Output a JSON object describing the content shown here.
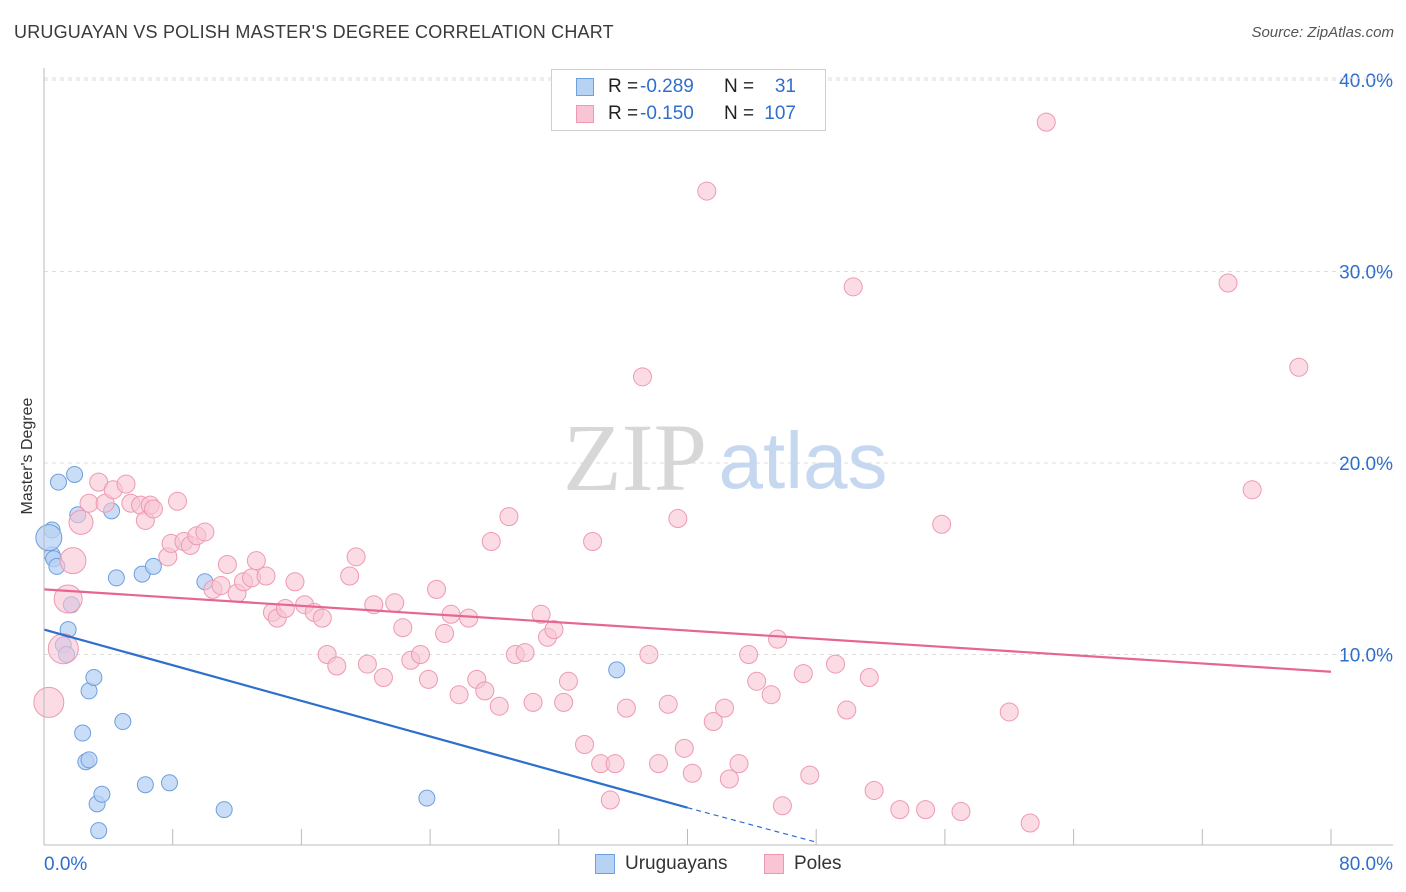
{
  "header": {
    "title": "URUGUAYAN VS POLISH MASTER'S DEGREE CORRELATION CHART",
    "source": "Source: ZipAtlas.com"
  },
  "watermark": {
    "zip": "ZIP",
    "atlas": "atlas"
  },
  "legend": {
    "rows": [
      {
        "r_label": "R =",
        "r_value": "-0.289",
        "n_label": "N =",
        "n_value": "31"
      },
      {
        "r_label": "R =",
        "r_value": "-0.150",
        "n_label": "N =",
        "n_value": "107"
      }
    ]
  },
  "bottom_legend": {
    "uruguayans": "Uruguayans",
    "poles": "Poles"
  },
  "colors": {
    "uruguayans_fill": "#b8d2f4",
    "uruguayans_stroke": "#6e9fde",
    "uruguayans_line": "#2f6fcc",
    "poles_fill": "#f9c5d4",
    "poles_stroke": "#ee99b2",
    "poles_line": "#e56690",
    "tick_text": "#2f6fcc",
    "grid": "#dddddd"
  },
  "chart_data": {
    "type": "scatter",
    "title": "URUGUAYAN VS POLISH MASTER'S DEGREE CORRELATION CHART",
    "xlabel": "",
    "ylabel": "Master's Degree",
    "xlim": [
      0,
      80
    ],
    "ylim": [
      0,
      42
    ],
    "x_tick_labels": [
      "0.0%",
      "80.0%"
    ],
    "y_ticks": [
      10,
      20,
      30,
      40
    ],
    "y_tick_labels": [
      "10.0%",
      "20.0%",
      "30.0%",
      "40.0%"
    ],
    "legend_position": "top-center",
    "series": [
      {
        "name": "Uruguayans",
        "r": -0.289,
        "n": 31,
        "points": [
          [
            0.5,
            16.5
          ],
          [
            0.5,
            15.2
          ],
          [
            0.6,
            15.0
          ],
          [
            0.8,
            14.6
          ],
          [
            0.9,
            19.0
          ],
          [
            1.2,
            10.5
          ],
          [
            1.4,
            10.0
          ],
          [
            1.5,
            11.3
          ],
          [
            1.7,
            12.6
          ],
          [
            1.9,
            19.4
          ],
          [
            2.1,
            17.3
          ],
          [
            2.4,
            5.9
          ],
          [
            2.6,
            4.4
          ],
          [
            2.8,
            4.5
          ],
          [
            2.8,
            8.1
          ],
          [
            3.1,
            8.8
          ],
          [
            3.3,
            2.2
          ],
          [
            3.4,
            0.8
          ],
          [
            3.6,
            2.7
          ],
          [
            4.2,
            17.5
          ],
          [
            4.5,
            14.0
          ],
          [
            4.9,
            6.5
          ],
          [
            6.1,
            14.2
          ],
          [
            6.3,
            3.2
          ],
          [
            6.8,
            14.6
          ],
          [
            7.8,
            3.3
          ],
          [
            10.0,
            13.8
          ],
          [
            11.2,
            1.9
          ],
          [
            23.8,
            2.5
          ],
          [
            35.6,
            9.2
          ],
          [
            0.3,
            16.1
          ]
        ],
        "trend": {
          "x0": 0,
          "y0": 11.3,
          "x1": 40,
          "y1": 2.0,
          "dash_x1": 48,
          "dash_y1": 0.2
        }
      },
      {
        "name": "Poles",
        "r": -0.15,
        "n": 107,
        "points": [
          [
            0.3,
            7.5
          ],
          [
            1.2,
            10.3
          ],
          [
            1.5,
            12.9
          ],
          [
            1.8,
            14.9
          ],
          [
            2.3,
            16.9
          ],
          [
            2.8,
            17.9
          ],
          [
            3.4,
            19.0
          ],
          [
            3.8,
            17.9
          ],
          [
            4.3,
            18.6
          ],
          [
            5.1,
            18.9
          ],
          [
            5.4,
            17.9
          ],
          [
            6.0,
            17.8
          ],
          [
            6.3,
            17.0
          ],
          [
            6.6,
            17.8
          ],
          [
            6.8,
            17.6
          ],
          [
            7.7,
            15.1
          ],
          [
            7.9,
            15.8
          ],
          [
            8.3,
            18.0
          ],
          [
            8.7,
            15.9
          ],
          [
            9.1,
            15.7
          ],
          [
            9.5,
            16.2
          ],
          [
            10.0,
            16.4
          ],
          [
            10.5,
            13.4
          ],
          [
            11.0,
            13.6
          ],
          [
            11.4,
            14.7
          ],
          [
            12.0,
            13.2
          ],
          [
            12.4,
            13.8
          ],
          [
            12.9,
            14.0
          ],
          [
            13.2,
            14.9
          ],
          [
            13.8,
            14.1
          ],
          [
            14.2,
            12.2
          ],
          [
            14.5,
            11.9
          ],
          [
            15.0,
            12.4
          ],
          [
            15.6,
            13.8
          ],
          [
            16.2,
            12.6
          ],
          [
            16.8,
            12.2
          ],
          [
            17.3,
            11.9
          ],
          [
            17.6,
            10.0
          ],
          [
            18.2,
            9.4
          ],
          [
            19.0,
            14.1
          ],
          [
            19.4,
            15.1
          ],
          [
            20.1,
            9.5
          ],
          [
            20.5,
            12.6
          ],
          [
            21.1,
            8.8
          ],
          [
            21.8,
            12.7
          ],
          [
            22.3,
            11.4
          ],
          [
            22.8,
            9.7
          ],
          [
            23.4,
            10.0
          ],
          [
            23.9,
            8.7
          ],
          [
            24.4,
            13.4
          ],
          [
            24.9,
            11.1
          ],
          [
            25.3,
            12.1
          ],
          [
            25.8,
            7.9
          ],
          [
            26.4,
            11.9
          ],
          [
            26.9,
            8.7
          ],
          [
            27.4,
            8.1
          ],
          [
            27.8,
            15.9
          ],
          [
            28.3,
            7.3
          ],
          [
            28.9,
            17.2
          ],
          [
            29.3,
            10.0
          ],
          [
            29.9,
            10.1
          ],
          [
            30.4,
            7.5
          ],
          [
            30.9,
            12.1
          ],
          [
            31.3,
            10.9
          ],
          [
            31.7,
            11.3
          ],
          [
            32.3,
            7.5
          ],
          [
            32.6,
            8.6
          ],
          [
            33.6,
            5.3
          ],
          [
            34.1,
            15.9
          ],
          [
            34.6,
            4.3
          ],
          [
            35.2,
            2.4
          ],
          [
            35.5,
            4.3
          ],
          [
            36.2,
            7.2
          ],
          [
            37.2,
            24.5
          ],
          [
            37.6,
            10.0
          ],
          [
            38.2,
            4.3
          ],
          [
            38.8,
            7.4
          ],
          [
            39.4,
            17.1
          ],
          [
            39.8,
            5.1
          ],
          [
            40.3,
            3.8
          ],
          [
            41.2,
            34.2
          ],
          [
            41.6,
            6.5
          ],
          [
            42.3,
            7.2
          ],
          [
            42.6,
            3.5
          ],
          [
            43.2,
            4.3
          ],
          [
            43.8,
            10.0
          ],
          [
            44.3,
            8.6
          ],
          [
            45.2,
            7.9
          ],
          [
            45.6,
            10.8
          ],
          [
            45.9,
            2.1
          ],
          [
            47.2,
            9.0
          ],
          [
            47.6,
            3.7
          ],
          [
            49.2,
            9.5
          ],
          [
            49.9,
            7.1
          ],
          [
            50.3,
            29.2
          ],
          [
            51.3,
            8.8
          ],
          [
            51.6,
            2.9
          ],
          [
            53.2,
            1.9
          ],
          [
            54.8,
            1.9
          ],
          [
            55.8,
            16.8
          ],
          [
            57.0,
            1.8
          ],
          [
            60.0,
            7.0
          ],
          [
            61.3,
            1.2
          ],
          [
            62.3,
            37.8
          ],
          [
            73.6,
            29.4
          ],
          [
            75.1,
            18.6
          ],
          [
            78.0,
            25.0
          ]
        ],
        "trend": {
          "x0": 0,
          "y0": 13.4,
          "x1": 80,
          "y1": 9.1
        }
      }
    ]
  }
}
